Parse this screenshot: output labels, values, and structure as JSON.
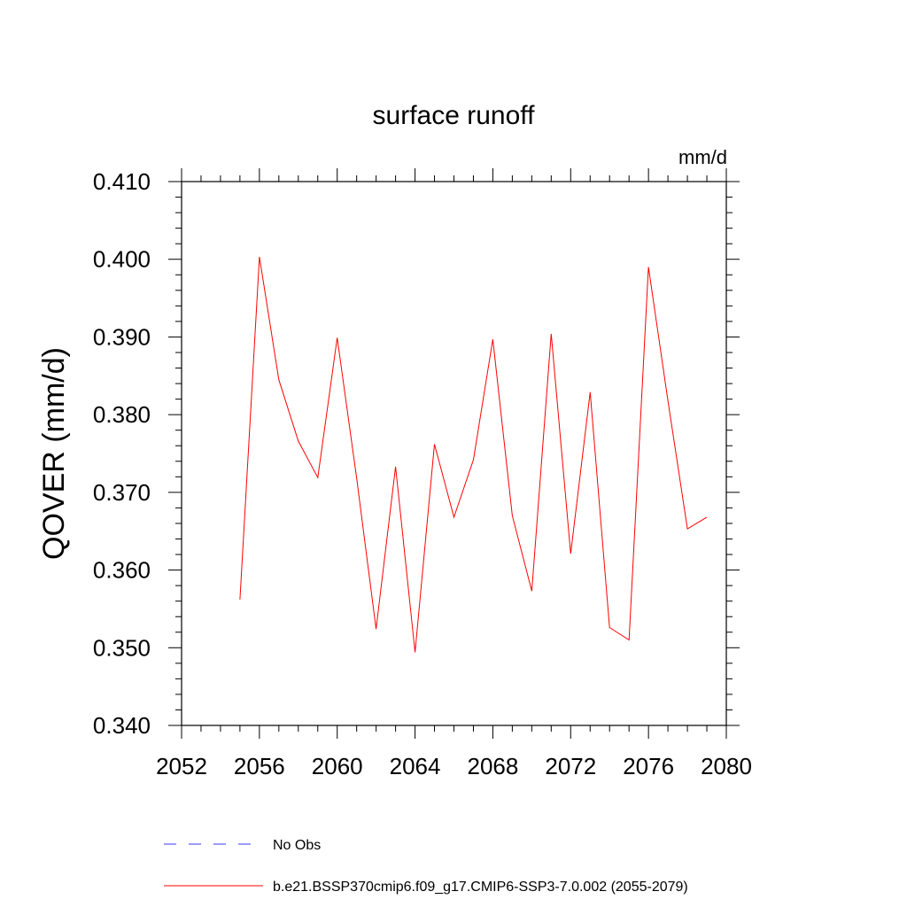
{
  "chart_data": {
    "type": "line",
    "title": "surface runoff",
    "units_label": "mm/d",
    "ylabel": "QOVER  (mm/d)",
    "xlabel": "",
    "xlim": [
      2052,
      2080
    ],
    "ylim": [
      0.34,
      0.41
    ],
    "x_ticks": [
      "2052",
      "2056",
      "2060",
      "2064",
      "2068",
      "2072",
      "2076",
      "2080"
    ],
    "y_ticks": [
      "0.340",
      "0.350",
      "0.360",
      "0.370",
      "0.380",
      "0.390",
      "0.400",
      "0.410"
    ],
    "grid": false,
    "legend_position": "bottom",
    "series": [
      {
        "name": "b.e21.BSSP370cmip6.f09_g17.CMIP6-SSP3-7.0.002 (2055-2079)",
        "color": "#ff0000",
        "style": "solid",
        "x": [
          2055,
          2056,
          2057,
          2058,
          2059,
          2060,
          2061,
          2062,
          2063,
          2064,
          2065,
          2066,
          2067,
          2068,
          2069,
          2070,
          2071,
          2072,
          2073,
          2074,
          2075,
          2076,
          2077,
          2078,
          2079
        ],
        "values": [
          0.3562,
          0.4003,
          0.3845,
          0.3766,
          0.3719,
          0.3899,
          0.3718,
          0.3524,
          0.3733,
          0.3494,
          0.3762,
          0.3668,
          0.3742,
          0.3897,
          0.367,
          0.3573,
          0.3904,
          0.3621,
          0.3829,
          0.3526,
          0.351,
          0.399,
          0.3818,
          0.3653,
          0.3668
        ]
      }
    ],
    "legend": [
      {
        "label": "No Obs",
        "color": "#3a3aff",
        "style": "dashed"
      },
      {
        "label": "b.e21.BSSP370cmip6.f09_g17.CMIP6-SSP3-7.0.002 (2055-2079)",
        "color": "#ff0000",
        "style": "solid"
      }
    ]
  }
}
